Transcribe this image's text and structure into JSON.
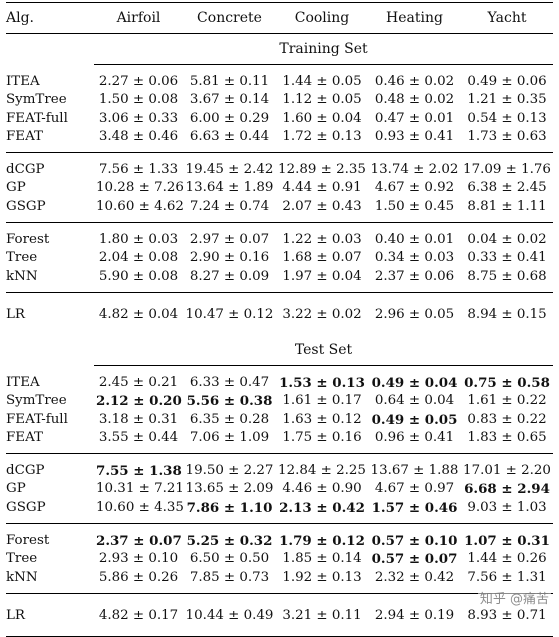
{
  "header": {
    "alg": "Alg.",
    "cols": [
      "Airfoil",
      "Concrete",
      "Cooling",
      "Heating",
      "Yacht"
    ]
  },
  "sections": [
    {
      "title": "Training Set",
      "groups": [
        [
          {
            "alg": "ITEA",
            "vals": [
              "2.27 ± 0.06",
              "5.81 ± 0.11",
              "1.44 ± 0.05",
              "0.46 ± 0.02",
              "0.49 ± 0.06"
            ],
            "bold": [
              false,
              false,
              false,
              false,
              false
            ]
          },
          {
            "alg": "SymTree",
            "vals": [
              "1.50 ± 0.08",
              "3.67 ± 0.14",
              "1.12 ± 0.05",
              "0.48 ± 0.02",
              "1.21 ± 0.35"
            ],
            "bold": [
              false,
              false,
              false,
              false,
              false
            ]
          },
          {
            "alg": "FEAT-full",
            "vals": [
              "3.06 ± 0.33",
              "6.00 ± 0.29",
              "1.60 ± 0.04",
              "0.47 ± 0.01",
              "0.54 ± 0.13"
            ],
            "bold": [
              false,
              false,
              false,
              false,
              false
            ]
          },
          {
            "alg": "FEAT",
            "vals": [
              "3.48 ± 0.46",
              "6.63 ± 0.44",
              "1.72 ± 0.13",
              "0.93 ± 0.41",
              "1.73 ± 0.63"
            ],
            "bold": [
              false,
              false,
              false,
              false,
              false
            ]
          }
        ],
        [
          {
            "alg": "dCGP",
            "vals": [
              "7.56 ± 1.33",
              "19.45 ± 2.42",
              "12.89 ± 2.35",
              "13.74 ± 2.02",
              "17.09 ± 1.76"
            ],
            "bold": [
              false,
              false,
              false,
              false,
              false
            ]
          },
          {
            "alg": "GP",
            "vals": [
              "10.28 ± 7.26",
              "13.64 ± 1.89",
              "4.44 ± 0.91",
              "4.67 ± 0.92",
              "6.38 ± 2.45"
            ],
            "bold": [
              false,
              false,
              false,
              false,
              false
            ]
          },
          {
            "alg": "GSGP",
            "vals": [
              "10.60 ± 4.62",
              "7.24 ± 0.74",
              "2.07 ± 0.43",
              "1.50 ± 0.45",
              "8.81 ± 1.11"
            ],
            "bold": [
              false,
              false,
              false,
              false,
              false
            ]
          }
        ],
        [
          {
            "alg": "Forest",
            "vals": [
              "1.80 ± 0.03",
              "2.97 ± 0.07",
              "1.22 ± 0.03",
              "0.40 ± 0.01",
              "0.04 ± 0.02"
            ],
            "bold": [
              false,
              false,
              false,
              false,
              false
            ]
          },
          {
            "alg": "Tree",
            "vals": [
              "2.04 ± 0.08",
              "2.90 ± 0.16",
              "1.68 ± 0.07",
              "0.34 ± 0.03",
              "0.33 ± 0.41"
            ],
            "bold": [
              false,
              false,
              false,
              false,
              false
            ]
          },
          {
            "alg": "kNN",
            "vals": [
              "5.90 ± 0.08",
              "8.27 ± 0.09",
              "1.97 ± 0.04",
              "2.37 ± 0.06",
              "8.75 ± 0.68"
            ],
            "bold": [
              false,
              false,
              false,
              false,
              false
            ]
          }
        ],
        [
          {
            "alg": "LR",
            "vals": [
              "4.82 ± 0.04",
              "10.47 ± 0.12",
              "3.22 ± 0.02",
              "2.96 ± 0.05",
              "8.94 ± 0.15"
            ],
            "bold": [
              false,
              false,
              false,
              false,
              false
            ]
          }
        ]
      ]
    },
    {
      "title": "Test Set",
      "groups": [
        [
          {
            "alg": "ITEA",
            "vals": [
              "2.45 ± 0.21",
              "6.33 ± 0.47",
              "1.53 ± 0.13",
              "0.49 ± 0.04",
              "0.75 ± 0.58"
            ],
            "bold": [
              false,
              false,
              true,
              true,
              true
            ]
          },
          {
            "alg": "SymTree",
            "vals": [
              "2.12 ± 0.20",
              "5.56 ± 0.38",
              "1.61 ± 0.17",
              "0.64 ± 0.04",
              "1.61 ± 0.22"
            ],
            "bold": [
              true,
              true,
              false,
              false,
              false
            ]
          },
          {
            "alg": "FEAT-full",
            "vals": [
              "3.18 ± 0.31",
              "6.35 ± 0.28",
              "1.63 ± 0.12",
              "0.49 ± 0.05",
              "0.83 ± 0.22"
            ],
            "bold": [
              false,
              false,
              false,
              true,
              false
            ]
          },
          {
            "alg": "FEAT",
            "vals": [
              "3.55 ± 0.44",
              "7.06 ± 1.09",
              "1.75 ± 0.16",
              "0.96 ± 0.41",
              "1.83 ± 0.65"
            ],
            "bold": [
              false,
              false,
              false,
              false,
              false
            ]
          }
        ],
        [
          {
            "alg": "dCGP",
            "vals": [
              "7.55 ± 1.38",
              "19.50 ± 2.27",
              "12.84 ± 2.25",
              "13.67 ± 1.88",
              "17.01 ± 2.20"
            ],
            "bold": [
              true,
              false,
              false,
              false,
              false
            ]
          },
          {
            "alg": "GP",
            "vals": [
              "10.31 ± 7.21",
              "13.65 ± 2.09",
              "4.46 ± 0.90",
              "4.67 ± 0.97",
              "6.68 ± 2.94"
            ],
            "bold": [
              false,
              false,
              false,
              false,
              true
            ]
          },
          {
            "alg": "GSGP",
            "vals": [
              "10.60 ± 4.35",
              "7.86 ± 1.10",
              "2.13 ± 0.42",
              "1.57 ± 0.46",
              "9.03 ± 1.03"
            ],
            "bold": [
              false,
              true,
              true,
              true,
              false
            ]
          }
        ],
        [
          {
            "alg": "Forest",
            "vals": [
              "2.37 ± 0.07",
              "5.25 ± 0.32",
              "1.79 ± 0.12",
              "0.57 ± 0.10",
              "1.07 ± 0.31"
            ],
            "bold": [
              true,
              true,
              true,
              true,
              true
            ]
          },
          {
            "alg": "Tree",
            "vals": [
              "2.93 ± 0.10",
              "6.50 ± 0.50",
              "1.85 ± 0.14",
              "0.57 ± 0.07",
              "1.44 ± 0.26"
            ],
            "bold": [
              false,
              false,
              false,
              true,
              false
            ]
          },
          {
            "alg": "kNN",
            "vals": [
              "5.86 ± 0.26",
              "7.85 ± 0.73",
              "1.92 ± 0.13",
              "2.32 ± 0.42",
              "7.56 ± 1.31"
            ],
            "bold": [
              false,
              false,
              false,
              false,
              false
            ]
          }
        ],
        [
          {
            "alg": "LR",
            "vals": [
              "4.82 ± 0.17",
              "10.44 ± 0.49",
              "3.21 ± 0.11",
              "2.94 ± 0.19",
              "8.93 ± 0.71"
            ],
            "bold": [
              false,
              false,
              false,
              false,
              false
            ]
          }
        ]
      ]
    }
  ],
  "watermark": "知乎 @痛苦"
}
